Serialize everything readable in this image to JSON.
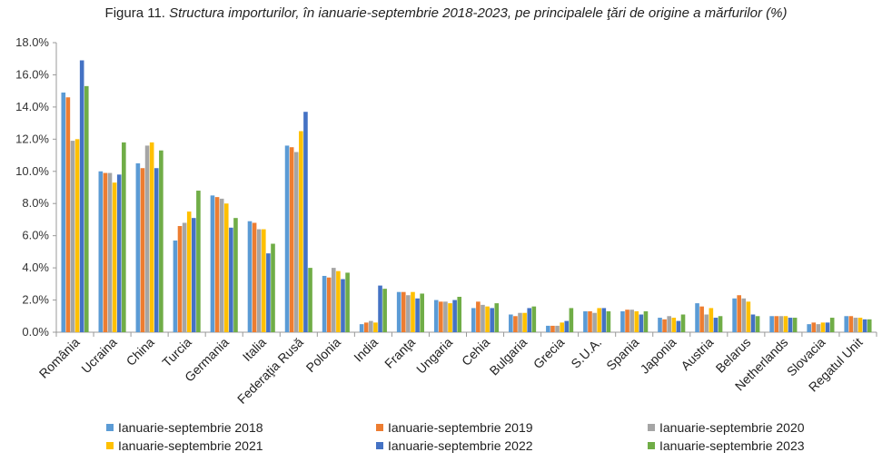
{
  "title_lead": "Figura 11.",
  "title_main": "Structura importurilor, în ianuarie-septembrie 2018-2023, pe principalele ţări de origine a mărfurilor (%)",
  "chart_data": {
    "type": "bar",
    "title": "Figura 11. Structura importurilor, în ianuarie-septembrie 2018-2023, pe principalele ţări de origine a mărfurilor (%)",
    "ylim": [
      0,
      18
    ],
    "yticks": [
      "0.0%",
      "2.0%",
      "4.0%",
      "6.0%",
      "8.0%",
      "10.0%",
      "12.0%",
      "14.0%",
      "16.0%",
      "18.0%"
    ],
    "grid": false,
    "legend_position": "bottom",
    "categories": [
      "România",
      "Ucraina",
      "China",
      "Turcia",
      "Germania",
      "Italia",
      "Federaţia Rusă",
      "Polonia",
      "India",
      "Franţa",
      "Ungaria",
      "Cehia",
      "Bulgaria",
      "Grecia",
      "S.U.A.",
      "Spania",
      "Japonia",
      "Austria",
      "Belarus",
      "Netherlands",
      "Slovacia",
      "Regatul Unit"
    ],
    "series": [
      {
        "name": "Ianuarie-septembrie 2018",
        "color": "#5B9BD5",
        "values": [
          14.9,
          10.0,
          10.5,
          5.7,
          8.5,
          6.9,
          11.6,
          3.5,
          0.5,
          2.5,
          2.0,
          1.5,
          1.1,
          0.4,
          1.3,
          1.3,
          0.9,
          1.8,
          2.1,
          1.0,
          0.5,
          1.0
        ]
      },
      {
        "name": "Ianuarie-septembrie 2019",
        "color": "#ED7D31",
        "values": [
          14.6,
          9.9,
          10.2,
          6.6,
          8.4,
          6.8,
          11.5,
          3.4,
          0.6,
          2.5,
          1.9,
          1.9,
          1.0,
          0.4,
          1.3,
          1.4,
          0.8,
          1.6,
          2.3,
          1.0,
          0.6,
          1.0
        ]
      },
      {
        "name": "Ianuarie-septembrie 2020",
        "color": "#A5A5A5",
        "values": [
          11.9,
          9.9,
          11.6,
          6.8,
          8.3,
          6.4,
          11.2,
          4.0,
          0.7,
          2.3,
          1.9,
          1.7,
          1.2,
          0.4,
          1.2,
          1.4,
          1.0,
          1.1,
          2.1,
          1.0,
          0.5,
          0.9
        ]
      },
      {
        "name": "Ianuarie-septembrie 2021",
        "color": "#FFC000",
        "values": [
          12.0,
          9.3,
          11.8,
          7.5,
          8.0,
          6.4,
          12.5,
          3.8,
          0.6,
          2.5,
          1.8,
          1.6,
          1.2,
          0.6,
          1.5,
          1.3,
          0.9,
          1.5,
          1.9,
          1.0,
          0.6,
          0.9
        ]
      },
      {
        "name": "Ianuarie-septembrie 2022",
        "color": "#4472C4",
        "values": [
          16.9,
          9.8,
          10.2,
          7.1,
          6.5,
          4.9,
          13.7,
          3.3,
          2.9,
          2.1,
          2.0,
          1.5,
          1.5,
          0.7,
          1.5,
          1.1,
          0.7,
          0.9,
          1.1,
          0.9,
          0.6,
          0.8
        ]
      },
      {
        "name": "Ianuarie-septembrie 2023",
        "color": "#70AD47",
        "values": [
          15.3,
          11.8,
          11.3,
          8.8,
          7.1,
          5.5,
          4.0,
          3.7,
          2.7,
          2.4,
          2.2,
          1.8,
          1.6,
          1.5,
          1.3,
          1.3,
          1.1,
          1.0,
          1.0,
          0.9,
          0.9,
          0.8
        ]
      }
    ]
  }
}
